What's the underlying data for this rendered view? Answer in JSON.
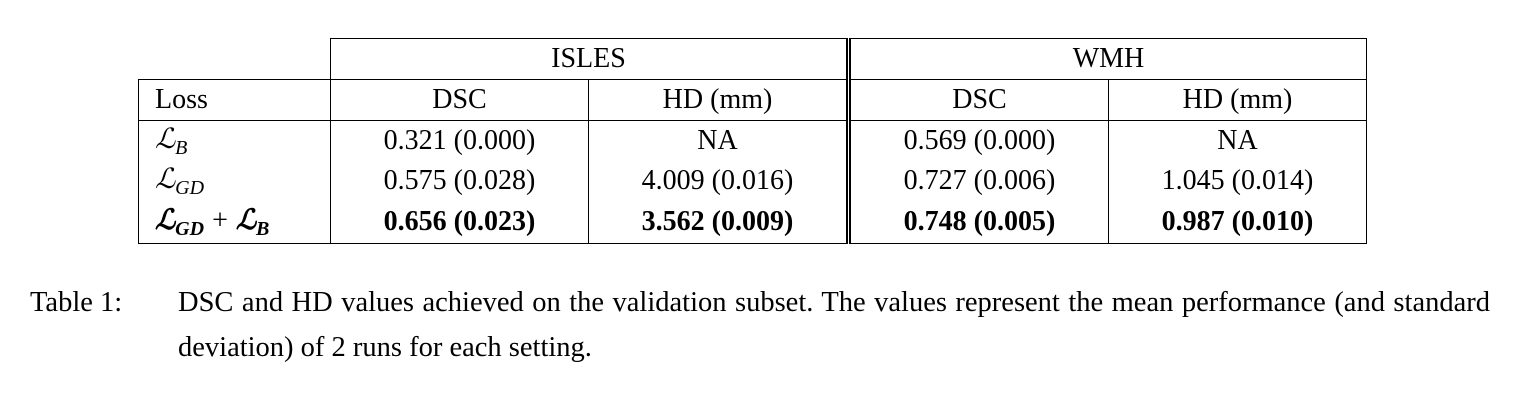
{
  "table": {
    "groups": [
      "ISLES",
      "WMH"
    ],
    "header": [
      "Loss",
      "DSC",
      "HD (mm)",
      "DSC",
      "HD (mm)"
    ],
    "rows": [
      {
        "loss": [
          [
            "ℒ",
            "B"
          ]
        ],
        "cells": [
          "0.321 (0.000)",
          "NA",
          "0.569 (0.000)",
          "NA"
        ]
      },
      {
        "loss": [
          [
            "ℒ",
            "GD"
          ]
        ],
        "cells": [
          "0.575 (0.028)",
          "4.009 (0.016)",
          "0.727 (0.006)",
          "1.045 (0.014)"
        ]
      },
      {
        "loss": [
          [
            "ℒ",
            "GD"
          ],
          "+",
          [
            "ℒ",
            "B"
          ]
        ],
        "cells": [
          "0.656 (0.023)",
          "3.562 (0.009)",
          "0.748 (0.005)",
          "0.987 (0.010)"
        ]
      }
    ]
  },
  "caption": {
    "label": "Table 1:",
    "text": "DSC and HD values achieved on the validation subset. The values represent the mean performance (and standard deviation) of 2 runs for each setting."
  }
}
